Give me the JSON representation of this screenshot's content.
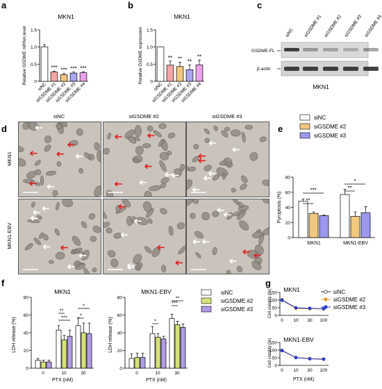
{
  "panels": {
    "a": {
      "letter": "a",
      "title": "MKN1",
      "ylabel": "Relative GSDME mRNA level",
      "categories": [
        "siNC",
        "siGSDME #1",
        "siGSDME #2",
        "siGSDME #3",
        "siGSDME #4"
      ],
      "sig": [
        "",
        "***",
        "***",
        "***",
        "***"
      ]
    },
    "b": {
      "letter": "b",
      "title": "MKN1",
      "ylabel": "Relative GSDME expression",
      "categories": [
        "siNC",
        "siGSDME #1",
        "siGSDME #2",
        "siGSDME #3",
        "siGSDME #4"
      ],
      "sig": [
        "",
        "**",
        "**",
        "**",
        "**"
      ]
    },
    "c": {
      "letter": "c",
      "lanes": [
        "siNC",
        "siGSDME #1",
        "siGSDME #2",
        "siGSDME #3",
        "siGSDME #4"
      ],
      "band1": "GSDME-FL",
      "band2": "β-actin",
      "cell": "MKN1"
    },
    "d": {
      "letter": "d",
      "cols": [
        "siNC",
        "siGSDME #2",
        "siGSDME #3"
      ],
      "rows": [
        "MKN1",
        "MKN1-EBV"
      ]
    },
    "e": {
      "letter": "e",
      "ylabel": "Pyroptosis (%)",
      "groups": [
        "MKN1",
        "MKN1-EBV"
      ],
      "legend": [
        "siNC",
        "siGSDME #2",
        "siGSDME #3"
      ],
      "sig": [
        "**",
        "***",
        "**",
        "*"
      ]
    },
    "f": {
      "letter": "f",
      "title1": "MKN1",
      "title2": "MKN1-EBV",
      "ylabel": "LDH release (%)",
      "xlabel": "PTX (nM)",
      "legend": [
        "siNC",
        "siGSDME #2",
        "siGSDME #3"
      ],
      "sig1": [
        "**",
        "***",
        "*",
        "*"
      ],
      "sig2": [
        "*",
        "***",
        "**"
      ]
    },
    "g": {
      "letter": "g",
      "title1": "MKN1",
      "title2": "MKN1-EBV",
      "ylabel": "Cell viability (%)",
      "xlabel": "PTX (nM)",
      "legend": [
        "siNC",
        "siGSDME #2",
        "siGSDME #3"
      ]
    }
  },
  "colors": {
    "siNC": "#ffffff",
    "si1": "#f4a6a6",
    "si2": "#f2c77e",
    "si3": "#a9a6ef",
    "si4": "#e9a3e9",
    "e_si2": "#f2c77e",
    "e_si3": "#9b98ee",
    "f_si2": "#d6e27a",
    "f_si3": "#b19be3"
  },
  "chart_data": [
    {
      "type": "bar",
      "title": "MKN1",
      "ylabel": "Relative GSDME mRNA level",
      "categories": [
        "siNC",
        "siGSDME #1",
        "siGSDME #2",
        "siGSDME #3",
        "siGSDME #4"
      ],
      "values": [
        1.0,
        0.27,
        0.19,
        0.24,
        0.25
      ],
      "errors": [
        0.07,
        0.03,
        0.04,
        0.03,
        0.03
      ],
      "ylim": [
        0,
        1.5
      ],
      "yticks": [
        0,
        0.5,
        1.0,
        1.5
      ]
    },
    {
      "type": "bar",
      "title": "MKN1",
      "ylabel": "Relative GSDME expression",
      "categories": [
        "siNC",
        "siGSDME #1",
        "siGSDME #2",
        "siGSDME #3",
        "siGSDME #4"
      ],
      "values": [
        1.0,
        0.47,
        0.43,
        0.34,
        0.48
      ],
      "errors": [
        0,
        0.12,
        0.13,
        0.14,
        0.14
      ],
      "ylim": [
        0,
        1.5
      ],
      "yticks": [
        0,
        0.5,
        1.0,
        1.5
      ]
    },
    {
      "type": "bar",
      "ylabel": "Pyroptosis (%)",
      "categories": [
        "MKN1",
        "MKN1-EBV"
      ],
      "series": [
        {
          "name": "siNC",
          "values": [
            48,
            57
          ],
          "errors": [
            3,
            7
          ]
        },
        {
          "name": "siGSDME #2",
          "values": [
            32,
            28
          ],
          "errors": [
            2,
            6
          ]
        },
        {
          "name": "siGSDME #3",
          "values": [
            29,
            33
          ],
          "errors": [
            1,
            8
          ]
        }
      ],
      "ylim": [
        0,
        80
      ],
      "yticks": [
        0,
        20,
        40,
        60,
        80
      ]
    },
    {
      "type": "bar",
      "title": "MKN1",
      "xlabel": "PTX (nM)",
      "ylabel": "LDH release (%)",
      "categories": [
        "0",
        "10",
        "30"
      ],
      "series": [
        {
          "name": "siNC",
          "values": [
            9,
            43,
            48
          ],
          "errors": [
            2,
            5,
            9
          ]
        },
        {
          "name": "siGSDME #2",
          "values": [
            7,
            32,
            40
          ],
          "errors": [
            2,
            5,
            11
          ]
        },
        {
          "name": "siGSDME #3",
          "values": [
            7,
            36,
            39
          ],
          "errors": [
            2,
            7,
            12
          ]
        }
      ],
      "ylim": [
        0,
        80
      ],
      "yticks": [
        0,
        20,
        40,
        60,
        80
      ]
    },
    {
      "type": "bar",
      "title": "MKN1-EBV",
      "xlabel": "PTX (nM)",
      "ylabel": "LDH release (%)",
      "categories": [
        "0",
        "10",
        "30"
      ],
      "series": [
        {
          "name": "siNC",
          "values": [
            11,
            39,
            56
          ],
          "errors": [
            5,
            8,
            5
          ]
        },
        {
          "name": "siGSDME #2",
          "values": [
            12,
            35,
            49
          ],
          "errors": [
            5,
            4,
            4
          ]
        },
        {
          "name": "siGSDME #3",
          "values": [
            12,
            33,
            46
          ],
          "errors": [
            5,
            3,
            4
          ]
        }
      ],
      "ylim": [
        0,
        80
      ],
      "yticks": [
        0,
        20,
        40,
        60,
        80
      ]
    },
    {
      "type": "line",
      "title": "MKN1",
      "xlabel": "PTX (nM)",
      "ylabel": "Cell viability (%)",
      "x": [
        "0",
        "10",
        "30",
        "100"
      ],
      "series": [
        {
          "name": "siNC",
          "values": [
            102,
            48,
            45,
            42
          ]
        },
        {
          "name": "siGSDME #2",
          "values": [
            100,
            45,
            43,
            43
          ]
        },
        {
          "name": "siGSDME #3",
          "values": [
            99,
            50,
            46,
            44
          ]
        }
      ],
      "ylim": [
        0,
        150
      ],
      "yticks": [
        0,
        50,
        100,
        150
      ]
    },
    {
      "type": "line",
      "title": "MKN1-EBV",
      "xlabel": "PTX (nM)",
      "ylabel": "Cell viability (%)",
      "x": [
        "0",
        "10",
        "30",
        "100"
      ],
      "series": [
        {
          "name": "siNC",
          "values": [
            98,
            52,
            44,
            40
          ]
        },
        {
          "name": "siGSDME #2",
          "values": [
            96,
            52,
            45,
            42
          ]
        },
        {
          "name": "siGSDME #3",
          "values": [
            97,
            51,
            43,
            41
          ]
        }
      ],
      "ylim": [
        0,
        150
      ],
      "yticks": [
        0,
        50,
        100,
        150
      ]
    }
  ]
}
